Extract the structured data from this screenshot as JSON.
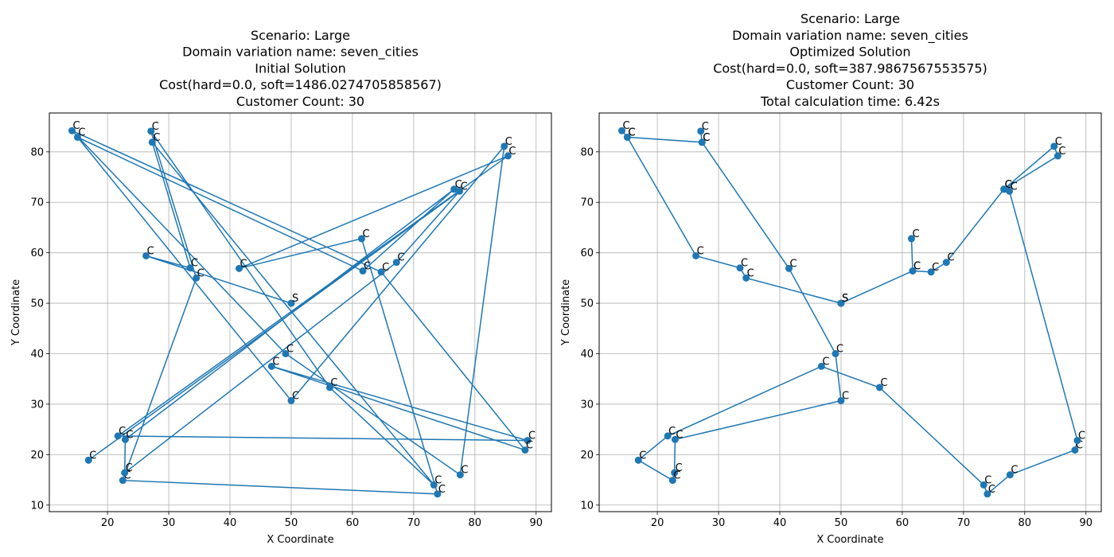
{
  "chart_data": [
    {
      "type": "line",
      "title_lines": [
        "Scenario: Large",
        "Domain variation name: seven_cities",
        "Initial Solution",
        "Cost(hard=0.0, soft=1486.0274705858567)",
        "Customer Count: 30"
      ],
      "xlabel": "X Coordinate",
      "ylabel": "Y Coordinate",
      "xlim": [
        10.5,
        92.5
      ],
      "ylim": [
        8.7,
        87.7
      ],
      "xticks": [
        "20",
        "30",
        "40",
        "50",
        "60",
        "70",
        "80",
        "90"
      ],
      "yticks": [
        "10",
        "20",
        "30",
        "40",
        "50",
        "60",
        "70",
        "80"
      ],
      "grid": true,
      "color": "#1f77b4",
      "points": [
        {
          "label": "S",
          "x": 50.0,
          "y": 50.0
        },
        {
          "label": "C",
          "x": 26.3,
          "y": 59.4
        },
        {
          "label": "C",
          "x": 33.5,
          "y": 57.0
        },
        {
          "label": "C",
          "x": 27.3,
          "y": 81.9
        },
        {
          "label": "C",
          "x": 73.3,
          "y": 14.0
        },
        {
          "label": "C",
          "x": 56.3,
          "y": 33.3
        },
        {
          "label": "C",
          "x": 27.1,
          "y": 84.1
        },
        {
          "label": "C",
          "x": 34.5,
          "y": 55.0
        },
        {
          "label": "C",
          "x": 22.5,
          "y": 14.9
        },
        {
          "label": "C",
          "x": 73.9,
          "y": 12.2
        },
        {
          "label": "C",
          "x": 61.5,
          "y": 62.8
        },
        {
          "label": "C",
          "x": 41.5,
          "y": 56.9
        },
        {
          "label": "C",
          "x": 85.4,
          "y": 79.2
        },
        {
          "label": "C",
          "x": 21.7,
          "y": 23.7
        },
        {
          "label": "C",
          "x": 88.6,
          "y": 22.8
        },
        {
          "label": "C",
          "x": 46.8,
          "y": 37.5
        },
        {
          "label": "C",
          "x": 88.2,
          "y": 20.9
        },
        {
          "label": "C",
          "x": 64.7,
          "y": 56.2
        },
        {
          "label": "C",
          "x": 14.2,
          "y": 84.2
        },
        {
          "label": "C",
          "x": 49.1,
          "y": 40.0
        },
        {
          "label": "C",
          "x": 77.6,
          "y": 16.0
        },
        {
          "label": "C",
          "x": 84.8,
          "y": 81.1
        },
        {
          "label": "C",
          "x": 50.0,
          "y": 30.7
        },
        {
          "label": "C",
          "x": 15.1,
          "y": 82.9
        },
        {
          "label": "C",
          "x": 61.7,
          "y": 56.4
        },
        {
          "label": "C",
          "x": 76.6,
          "y": 72.6
        },
        {
          "label": "C",
          "x": 22.9,
          "y": 23.0
        },
        {
          "label": "C",
          "x": 22.8,
          "y": 16.4
        },
        {
          "label": "C",
          "x": 67.2,
          "y": 58.1
        },
        {
          "label": "C",
          "x": 77.5,
          "y": 72.2
        },
        {
          "label": "C",
          "x": 16.9,
          "y": 18.9
        }
      ]
    },
    {
      "type": "line",
      "title_lines": [
        "Scenario: Large",
        "Domain variation name: seven_cities",
        "Optimized Solution",
        "Cost(hard=0.0, soft=387.9867567553575)",
        "Customer Count: 30",
        "Total calculation time: 6.42s"
      ],
      "xlabel": "X Coordinate",
      "ylabel": "Y Coordinate",
      "xlim": [
        10.5,
        92.5
      ],
      "ylim": [
        8.7,
        87.7
      ],
      "xticks": [
        "20",
        "30",
        "40",
        "50",
        "60",
        "70",
        "80",
        "90"
      ],
      "yticks": [
        "10",
        "20",
        "30",
        "40",
        "50",
        "60",
        "70",
        "80"
      ],
      "grid": true,
      "color": "#1f77b4",
      "points": [
        {
          "label": "S",
          "x": 50.0,
          "y": 50.0
        },
        {
          "label": "C",
          "x": 34.5,
          "y": 55.0
        },
        {
          "label": "C",
          "x": 33.5,
          "y": 57.0
        },
        {
          "label": "C",
          "x": 26.3,
          "y": 59.4
        },
        {
          "label": "C",
          "x": 15.1,
          "y": 82.9
        },
        {
          "label": "C",
          "x": 14.2,
          "y": 84.2
        },
        {
          "label": "C",
          "x": 15.1,
          "y": 82.9
        },
        {
          "label": "C",
          "x": 27.3,
          "y": 81.9
        },
        {
          "label": "C",
          "x": 27.1,
          "y": 84.1
        },
        {
          "label": "C",
          "x": 27.3,
          "y": 81.9
        },
        {
          "label": "C",
          "x": 41.5,
          "y": 56.9
        },
        {
          "label": "C",
          "x": 49.1,
          "y": 40.0
        },
        {
          "label": "C",
          "x": 50.0,
          "y": 30.7
        },
        {
          "label": "C",
          "x": 22.9,
          "y": 23.0
        },
        {
          "label": "C",
          "x": 22.8,
          "y": 16.4
        },
        {
          "label": "C",
          "x": 22.5,
          "y": 14.9
        },
        {
          "label": "C",
          "x": 16.9,
          "y": 18.9
        },
        {
          "label": "C",
          "x": 21.7,
          "y": 23.7
        },
        {
          "label": "C",
          "x": 46.8,
          "y": 37.5
        },
        {
          "label": "C",
          "x": 56.3,
          "y": 33.3
        },
        {
          "label": "C",
          "x": 73.3,
          "y": 14.0
        },
        {
          "label": "C",
          "x": 73.9,
          "y": 12.2
        },
        {
          "label": "C",
          "x": 77.6,
          "y": 16.0
        },
        {
          "label": "C",
          "x": 88.2,
          "y": 20.9
        },
        {
          "label": "C",
          "x": 88.6,
          "y": 22.8
        },
        {
          "label": "C",
          "x": 77.5,
          "y": 72.2
        },
        {
          "label": "C",
          "x": 76.6,
          "y": 72.6
        },
        {
          "label": "C",
          "x": 84.8,
          "y": 81.1
        },
        {
          "label": "C",
          "x": 85.4,
          "y": 79.2
        },
        {
          "label": "C",
          "x": 76.6,
          "y": 72.6
        },
        {
          "label": "C",
          "x": 67.2,
          "y": 58.1
        },
        {
          "label": "C",
          "x": 64.7,
          "y": 56.2
        },
        {
          "label": "C",
          "x": 61.7,
          "y": 56.4
        },
        {
          "label": "C",
          "x": 61.5,
          "y": 62.8
        },
        {
          "label": "C",
          "x": 61.7,
          "y": 56.4
        },
        {
          "label": "S",
          "x": 50.0,
          "y": 50.0
        }
      ]
    }
  ]
}
